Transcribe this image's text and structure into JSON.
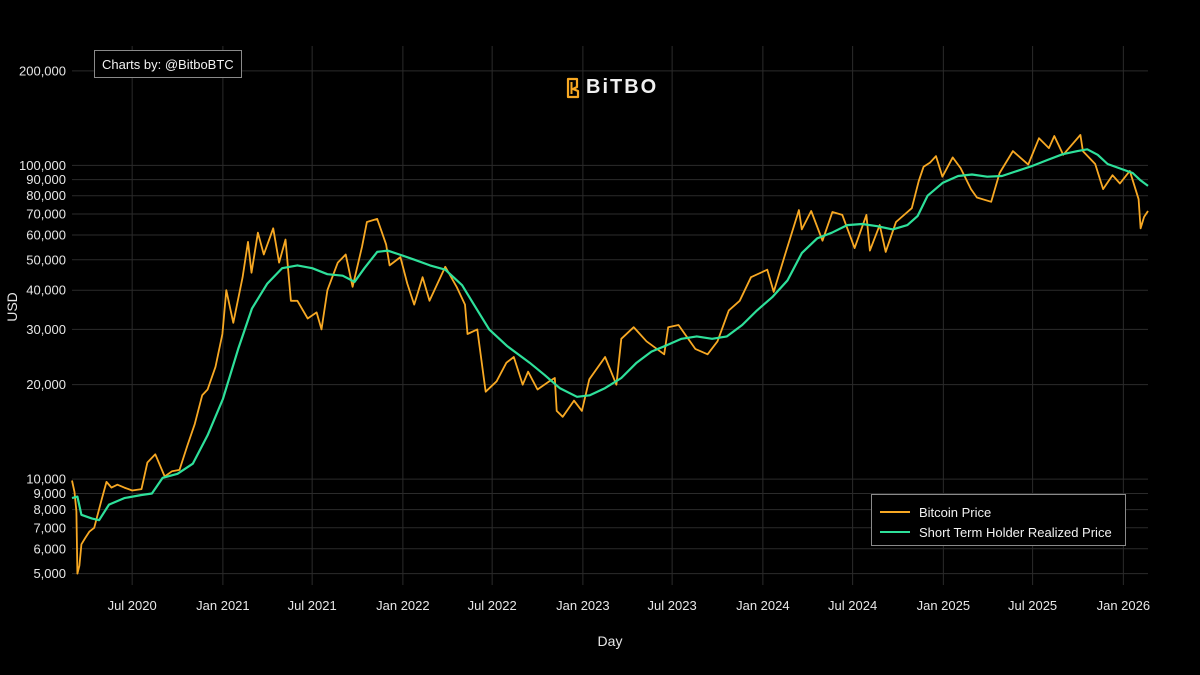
{
  "credit": {
    "text": "Charts by: @BitboBTC"
  },
  "brand": {
    "name": "BiTBO",
    "accent": "#f7a823"
  },
  "chart_data": {
    "type": "line",
    "title": "",
    "xlabel": "Day",
    "ylabel": "USD",
    "yscale": "log",
    "ylim": [
      4600,
      240000
    ],
    "xlim": [
      "2020-03-01",
      "2026-02-20"
    ],
    "y_ticks": [
      {
        "value": 5000,
        "label": "5,000"
      },
      {
        "value": 6000,
        "label": "6,000"
      },
      {
        "value": 7000,
        "label": "7,000"
      },
      {
        "value": 8000,
        "label": "8,000"
      },
      {
        "value": 9000,
        "label": "9,000"
      },
      {
        "value": 10000,
        "label": "10,000"
      },
      {
        "value": 20000,
        "label": "20,000"
      },
      {
        "value": 30000,
        "label": "30,000"
      },
      {
        "value": 40000,
        "label": "40,000"
      },
      {
        "value": 50000,
        "label": "50,000"
      },
      {
        "value": 60000,
        "label": "60,000"
      },
      {
        "value": 70000,
        "label": "70,000"
      },
      {
        "value": 80000,
        "label": "80,000"
      },
      {
        "value": 90000,
        "label": "90,000"
      },
      {
        "value": 100000,
        "label": "100,000"
      },
      {
        "value": 200000,
        "label": "200,000"
      }
    ],
    "x_ticks": [
      {
        "date": "2020-07-01",
        "label": "Jul 2020"
      },
      {
        "date": "2021-01-01",
        "label": "Jan 2021"
      },
      {
        "date": "2021-07-01",
        "label": "Jul 2021"
      },
      {
        "date": "2022-01-01",
        "label": "Jan 2022"
      },
      {
        "date": "2022-07-01",
        "label": "Jul 2022"
      },
      {
        "date": "2023-01-01",
        "label": "Jan 2023"
      },
      {
        "date": "2023-07-01",
        "label": "Jul 2023"
      },
      {
        "date": "2024-01-01",
        "label": "Jan 2024"
      },
      {
        "date": "2024-07-01",
        "label": "Jul 2024"
      },
      {
        "date": "2025-01-01",
        "label": "Jan 2025"
      },
      {
        "date": "2025-07-01",
        "label": "Jul 2025"
      },
      {
        "date": "2026-01-01",
        "label": "Jan 2026"
      }
    ],
    "series": [
      {
        "name": "Bitcoin Price",
        "color": "#f7a823",
        "points": [
          [
            "2020-03-01",
            9900
          ],
          [
            "2020-03-06",
            9100
          ],
          [
            "2020-03-10",
            7900
          ],
          [
            "2020-03-12",
            5000
          ],
          [
            "2020-03-16",
            5300
          ],
          [
            "2020-03-20",
            6200
          ],
          [
            "2020-03-28",
            6500
          ],
          [
            "2020-04-05",
            6800
          ],
          [
            "2020-04-15",
            7000
          ],
          [
            "2020-04-30",
            8600
          ],
          [
            "2020-05-10",
            9800
          ],
          [
            "2020-05-20",
            9400
          ],
          [
            "2020-06-01",
            9600
          ],
          [
            "2020-06-15",
            9400
          ],
          [
            "2020-07-01",
            9200
          ],
          [
            "2020-07-20",
            9300
          ],
          [
            "2020-08-01",
            11300
          ],
          [
            "2020-08-17",
            12000
          ],
          [
            "2020-09-05",
            10200
          ],
          [
            "2020-09-20",
            10600
          ],
          [
            "2020-10-05",
            10700
          ],
          [
            "2020-10-21",
            12800
          ],
          [
            "2020-11-05",
            15000
          ],
          [
            "2020-11-20",
            18500
          ],
          [
            "2020-12-01",
            19300
          ],
          [
            "2020-12-17",
            22800
          ],
          [
            "2020-12-31",
            29000
          ],
          [
            "2021-01-08",
            40000
          ],
          [
            "2021-01-22",
            31500
          ],
          [
            "2021-02-10",
            44000
          ],
          [
            "2021-02-21",
            57000
          ],
          [
            "2021-02-28",
            45500
          ],
          [
            "2021-03-13",
            61000
          ],
          [
            "2021-03-25",
            52000
          ],
          [
            "2021-04-13",
            63000
          ],
          [
            "2021-04-25",
            49000
          ],
          [
            "2021-05-08",
            58000
          ],
          [
            "2021-05-19",
            37000
          ],
          [
            "2021-06-01",
            37000
          ],
          [
            "2021-06-22",
            32500
          ],
          [
            "2021-07-10",
            34000
          ],
          [
            "2021-07-20",
            30000
          ],
          [
            "2021-08-01",
            40000
          ],
          [
            "2021-08-22",
            49000
          ],
          [
            "2021-09-07",
            52000
          ],
          [
            "2021-09-21",
            41000
          ],
          [
            "2021-10-10",
            55000
          ],
          [
            "2021-10-20",
            66000
          ],
          [
            "2021-11-10",
            67500
          ],
          [
            "2021-11-28",
            56000
          ],
          [
            "2021-12-05",
            48000
          ],
          [
            "2021-12-27",
            51000
          ],
          [
            "2022-01-10",
            42000
          ],
          [
            "2022-01-24",
            36000
          ],
          [
            "2022-02-10",
            44000
          ],
          [
            "2022-02-24",
            37000
          ],
          [
            "2022-03-28",
            47500
          ],
          [
            "2022-04-20",
            41000
          ],
          [
            "2022-05-07",
            36000
          ],
          [
            "2022-05-12",
            29000
          ],
          [
            "2022-06-01",
            30000
          ],
          [
            "2022-06-14",
            21000
          ],
          [
            "2022-06-18",
            19000
          ],
          [
            "2022-07-10",
            20500
          ],
          [
            "2022-07-30",
            23500
          ],
          [
            "2022-08-14",
            24500
          ],
          [
            "2022-09-01",
            20000
          ],
          [
            "2022-09-12",
            22000
          ],
          [
            "2022-10-01",
            19300
          ],
          [
            "2022-10-25",
            20500
          ],
          [
            "2022-11-05",
            21000
          ],
          [
            "2022-11-09",
            16500
          ],
          [
            "2022-11-21",
            15800
          ],
          [
            "2022-12-14",
            17800
          ],
          [
            "2022-12-30",
            16500
          ],
          [
            "2023-01-14",
            20800
          ],
          [
            "2023-02-15",
            24500
          ],
          [
            "2023-03-10",
            20000
          ],
          [
            "2023-03-20",
            28000
          ],
          [
            "2023-04-14",
            30500
          ],
          [
            "2023-05-10",
            27500
          ],
          [
            "2023-06-15",
            25000
          ],
          [
            "2023-06-23",
            30500
          ],
          [
            "2023-07-14",
            31000
          ],
          [
            "2023-08-17",
            26000
          ],
          [
            "2023-09-11",
            25000
          ],
          [
            "2023-10-01",
            27500
          ],
          [
            "2023-10-24",
            34500
          ],
          [
            "2023-11-15",
            37000
          ],
          [
            "2023-12-08",
            44000
          ],
          [
            "2024-01-10",
            46500
          ],
          [
            "2024-01-23",
            39500
          ],
          [
            "2024-02-15",
            52000
          ],
          [
            "2024-03-14",
            72000
          ],
          [
            "2024-03-20",
            62500
          ],
          [
            "2024-04-08",
            71500
          ],
          [
            "2024-05-01",
            57500
          ],
          [
            "2024-05-21",
            71000
          ],
          [
            "2024-06-10",
            69500
          ],
          [
            "2024-07-05",
            54500
          ],
          [
            "2024-07-29",
            69500
          ],
          [
            "2024-08-05",
            53500
          ],
          [
            "2024-08-25",
            64500
          ],
          [
            "2024-09-06",
            53000
          ],
          [
            "2024-09-27",
            66000
          ],
          [
            "2024-10-29",
            73000
          ],
          [
            "2024-11-12",
            89000
          ],
          [
            "2024-11-22",
            99000
          ],
          [
            "2024-12-05",
            102000
          ],
          [
            "2024-12-17",
            107000
          ],
          [
            "2024-12-30",
            92000
          ],
          [
            "2025-01-20",
            106000
          ],
          [
            "2025-02-05",
            98000
          ],
          [
            "2025-02-26",
            84000
          ],
          [
            "2025-03-10",
            79000
          ],
          [
            "2025-04-08",
            76500
          ],
          [
            "2025-04-25",
            94500
          ],
          [
            "2025-05-22",
            111000
          ],
          [
            "2025-06-22",
            100500
          ],
          [
            "2025-07-14",
            122000
          ],
          [
            "2025-08-03",
            113500
          ],
          [
            "2025-08-14",
            124000
          ],
          [
            "2025-09-01",
            108000
          ],
          [
            "2025-10-06",
            125000
          ],
          [
            "2025-10-11",
            111000
          ],
          [
            "2025-11-05",
            101000
          ],
          [
            "2025-11-21",
            84000
          ],
          [
            "2025-12-10",
            93000
          ],
          [
            "2025-12-25",
            87500
          ],
          [
            "2026-01-14",
            96000
          ],
          [
            "2026-02-01",
            78000
          ],
          [
            "2026-02-05",
            63000
          ],
          [
            "2026-02-12",
            68500
          ],
          [
            "2026-02-20",
            71500
          ]
        ]
      },
      {
        "name": "Short Term Holder Realized Price",
        "color": "#2ee09a",
        "points": [
          [
            "2020-03-01",
            8700
          ],
          [
            "2020-03-12",
            8800
          ],
          [
            "2020-03-20",
            7700
          ],
          [
            "2020-04-10",
            7500
          ],
          [
            "2020-04-25",
            7400
          ],
          [
            "2020-05-15",
            8300
          ],
          [
            "2020-06-15",
            8700
          ],
          [
            "2020-07-20",
            8900
          ],
          [
            "2020-08-10",
            9000
          ],
          [
            "2020-09-01",
            10100
          ],
          [
            "2020-10-01",
            10400
          ],
          [
            "2020-11-01",
            11200
          ],
          [
            "2020-12-01",
            13800
          ],
          [
            "2021-01-01",
            18000
          ],
          [
            "2021-02-01",
            26000
          ],
          [
            "2021-03-01",
            35000
          ],
          [
            "2021-04-01",
            42000
          ],
          [
            "2021-05-01",
            47000
          ],
          [
            "2021-06-01",
            48000
          ],
          [
            "2021-07-01",
            47000
          ],
          [
            "2021-08-01",
            45000
          ],
          [
            "2021-09-01",
            44500
          ],
          [
            "2021-09-25",
            42500
          ],
          [
            "2021-10-15",
            47000
          ],
          [
            "2021-11-10",
            53000
          ],
          [
            "2021-12-01",
            53500
          ],
          [
            "2021-12-25",
            52000
          ],
          [
            "2022-01-25",
            50000
          ],
          [
            "2022-02-25",
            48000
          ],
          [
            "2022-03-28",
            46500
          ],
          [
            "2022-05-01",
            41500
          ],
          [
            "2022-05-25",
            36000
          ],
          [
            "2022-06-25",
            30000
          ],
          [
            "2022-08-01",
            26500
          ],
          [
            "2022-09-15",
            23500
          ],
          [
            "2022-10-15",
            21500
          ],
          [
            "2022-11-15",
            19500
          ],
          [
            "2022-12-20",
            18300
          ],
          [
            "2023-01-15",
            18500
          ],
          [
            "2023-02-15",
            19500
          ],
          [
            "2023-03-20",
            21000
          ],
          [
            "2023-04-20",
            23500
          ],
          [
            "2023-05-20",
            25500
          ],
          [
            "2023-06-20",
            26700
          ],
          [
            "2023-07-20",
            28000
          ],
          [
            "2023-08-20",
            28500
          ],
          [
            "2023-09-20",
            28000
          ],
          [
            "2023-10-20",
            28500
          ],
          [
            "2023-11-20",
            31000
          ],
          [
            "2023-12-20",
            34500
          ],
          [
            "2024-01-20",
            38000
          ],
          [
            "2024-02-20",
            43000
          ],
          [
            "2024-03-20",
            52500
          ],
          [
            "2024-04-20",
            58500
          ],
          [
            "2024-05-20",
            61000
          ],
          [
            "2024-06-20",
            64500
          ],
          [
            "2024-07-20",
            65000
          ],
          [
            "2024-08-20",
            64000
          ],
          [
            "2024-09-20",
            62500
          ],
          [
            "2024-10-20",
            64500
          ],
          [
            "2024-11-10",
            69000
          ],
          [
            "2024-11-30",
            80000
          ],
          [
            "2024-12-31",
            88000
          ],
          [
            "2025-01-31",
            92500
          ],
          [
            "2025-02-28",
            93500
          ],
          [
            "2025-03-31",
            92000
          ],
          [
            "2025-04-30",
            92500
          ],
          [
            "2025-05-31",
            96000
          ],
          [
            "2025-06-30",
            99500
          ],
          [
            "2025-07-31",
            104000
          ],
          [
            "2025-08-31",
            108500
          ],
          [
            "2025-09-30",
            111000
          ],
          [
            "2025-10-20",
            112500
          ],
          [
            "2025-11-10",
            108000
          ],
          [
            "2025-11-30",
            101000
          ],
          [
            "2025-12-31",
            97000
          ],
          [
            "2026-01-20",
            94500
          ],
          [
            "2026-02-05",
            89500
          ],
          [
            "2026-02-20",
            86000
          ]
        ]
      }
    ],
    "legend": "bottom-right"
  }
}
